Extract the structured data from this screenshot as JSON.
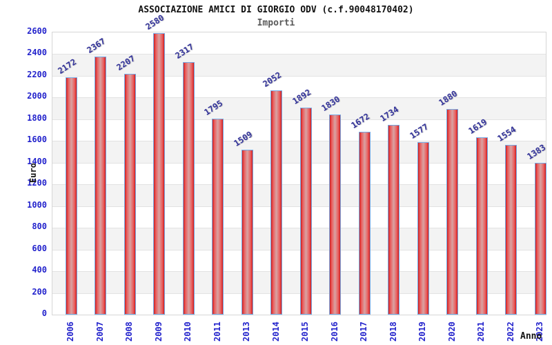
{
  "chart_data": {
    "type": "bar",
    "title": "ASSOCIAZIONE AMICI DI GIORGIO ODV (c.f.90048170402)",
    "subtitle": "Importi",
    "xlabel": "Anno",
    "ylabel": "Euro",
    "categories": [
      "2006",
      "2007",
      "2008",
      "2009",
      "2010",
      "2011",
      "2013",
      "2014",
      "2015",
      "2016",
      "2017",
      "2018",
      "2019",
      "2020",
      "2021",
      "2022",
      "2023"
    ],
    "values": [
      2172,
      2367,
      2207,
      2580,
      2317,
      1795,
      1509,
      2052,
      1892,
      1830,
      1672,
      1734,
      1577,
      1880,
      1619,
      1554,
      1383
    ],
    "ylim": [
      0,
      2600
    ],
    "ytick_step": 200,
    "grid": true,
    "legend": "none",
    "colors": {
      "bar_edge": "#cf1d1d",
      "bar_mid": "#d9a3a3",
      "bar_border": "#74a9e4",
      "axis_tick_text": "#2323cc",
      "value_label_text": "#32329b",
      "band_fill": "#f3f3f3",
      "gridline": "#e2e2e2",
      "plot_border": "#d6d6d6",
      "title_text": "#111111",
      "subtitle_text": "#5a5a5a"
    }
  }
}
